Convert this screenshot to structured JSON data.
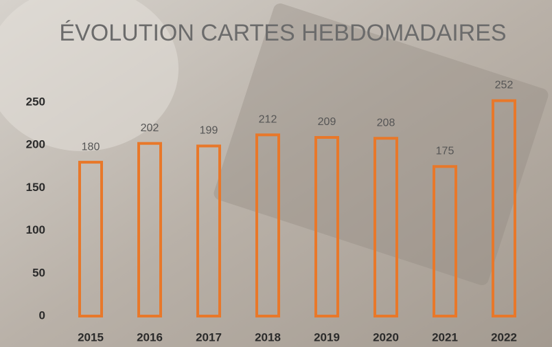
{
  "chart_data": {
    "type": "bar",
    "title": "ÉVOLUTION CARTES HEBDOMADAIRES",
    "categories": [
      "2015",
      "2016",
      "2017",
      "2018",
      "2019",
      "2020",
      "2021",
      "2022"
    ],
    "values": [
      180,
      202,
      199,
      212,
      209,
      208,
      175,
      252
    ],
    "color": "#e8782a",
    "ylim": [
      0,
      300
    ],
    "yticks": [
      0,
      50,
      100,
      150,
      200,
      250
    ],
    "grid": false
  }
}
